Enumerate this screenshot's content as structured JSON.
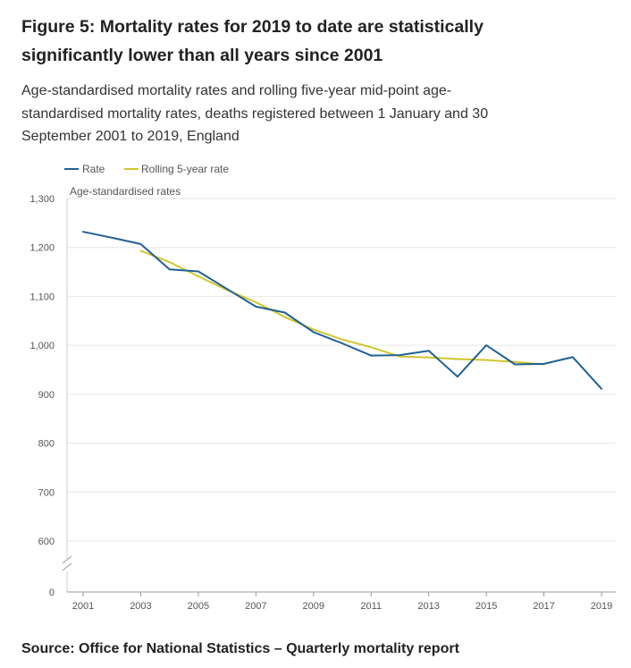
{
  "header": {
    "title": "Figure 5: Mortality rates for 2019 to date are statistically significantly lower than all years since 2001",
    "subtitle": "Age-standardised mortality rates and rolling five-year mid-point age-standardised mortality rates, deaths registered between 1 January and 30 September 2001 to 2019, England"
  },
  "footer": {
    "source": "Source: Office for National Statistics – Quarterly mortality report"
  },
  "colors": {
    "rate": "#206095",
    "rolling": "#d1c62b",
    "grid": "#e6e6e6",
    "axis": "#999999",
    "text": "#555555"
  },
  "chart_data": {
    "type": "line",
    "ylabel": "Age-standardised rates",
    "ylim": [
      0,
      1300
    ],
    "axis_break": true,
    "yticks": [
      0,
      600,
      700,
      800,
      900,
      1000,
      1100,
      1200,
      1300
    ],
    "ytick_labels": [
      "0",
      "600",
      "700",
      "800",
      "900",
      "1,000",
      "1,100",
      "1,200",
      "1,300"
    ],
    "xticks": [
      2001,
      2003,
      2005,
      2007,
      2009,
      2011,
      2013,
      2015,
      2017,
      2019
    ],
    "grid": true,
    "legend_position": "top-left",
    "series": [
      {
        "name": "Rate",
        "x": [
          2001,
          2002,
          2003,
          2004,
          2005,
          2006,
          2007,
          2008,
          2009,
          2010,
          2011,
          2012,
          2013,
          2014,
          2015,
          2016,
          2017,
          2018,
          2019
        ],
        "values": [
          1232,
          1220,
          1207,
          1155,
          1151,
          1115,
          1079,
          1067,
          1027,
          1004,
          979,
          980,
          989,
          936,
          1000,
          961,
          962,
          976,
          911
        ]
      },
      {
        "name": "Rolling 5-year rate",
        "x": [
          2003,
          2004,
          2005,
          2006,
          2007,
          2008,
          2009,
          2010,
          2011,
          2012,
          2013,
          2014,
          2015,
          2016,
          2017
        ],
        "values": [
          1193,
          1170,
          1141,
          1113,
          1088,
          1058,
          1032,
          1012,
          996,
          977,
          975,
          972,
          970,
          966,
          961
        ]
      }
    ]
  }
}
